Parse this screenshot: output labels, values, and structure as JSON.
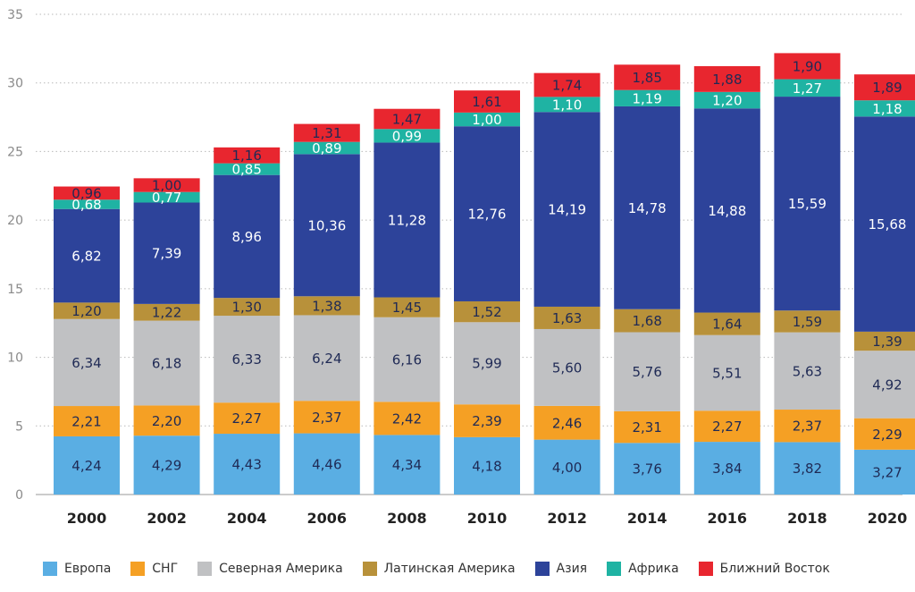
{
  "chart_data": {
    "type": "bar",
    "stacked": true,
    "categories": [
      "2000",
      "2002",
      "2004",
      "2006",
      "2008",
      "2010",
      "2012",
      "2014",
      "2016",
      "2018",
      "2020"
    ],
    "ylim": [
      0,
      35
    ],
    "yticks": [
      0,
      5,
      10,
      15,
      20,
      25,
      30,
      35
    ],
    "grid": true,
    "legend_position": "bottom",
    "series": [
      {
        "name": "Европа",
        "color": "#5aaee3",
        "label_color": "#1f2a55",
        "values": [
          4.24,
          4.29,
          4.43,
          4.46,
          4.34,
          4.18,
          4.0,
          3.76,
          3.84,
          3.82,
          3.27
        ],
        "labels": [
          "4,24",
          "4,29",
          "4,43",
          "4,46",
          "4,34",
          "4,18",
          "4,00",
          "3,76",
          "3,84",
          "3,82",
          "3,27"
        ]
      },
      {
        "name": "СНГ",
        "color": "#f5a024",
        "label_color": "#1f2a55",
        "values": [
          2.21,
          2.2,
          2.27,
          2.37,
          2.42,
          2.39,
          2.46,
          2.31,
          2.27,
          2.37,
          2.29
        ],
        "labels": [
          "2,21",
          "2,20",
          "2,27",
          "2,37",
          "2,42",
          "2,39",
          "2,46",
          "2,31",
          "2,27",
          "2,37",
          "2,29"
        ]
      },
      {
        "name": "Северная Америка",
        "color": "#c0c1c3",
        "label_color": "#1f2a55",
        "values": [
          6.34,
          6.18,
          6.33,
          6.24,
          6.16,
          5.99,
          5.6,
          5.76,
          5.51,
          5.63,
          4.92
        ],
        "labels": [
          "6,34",
          "6,18",
          "6,33",
          "6,24",
          "6,16",
          "5,99",
          "5,60",
          "5,76",
          "5,51",
          "5,63",
          "4,92"
        ]
      },
      {
        "name": "Латинская Америка",
        "color": "#b8913a",
        "label_color": "#1f2a55",
        "values": [
          1.2,
          1.22,
          1.3,
          1.38,
          1.45,
          1.52,
          1.63,
          1.68,
          1.64,
          1.59,
          1.39
        ],
        "labels": [
          "1,20",
          "1,22",
          "1,30",
          "1,38",
          "1,45",
          "1,52",
          "1,63",
          "1,68",
          "1,64",
          "1,59",
          "1,39"
        ]
      },
      {
        "name": "Азия",
        "color": "#2d439a",
        "label_color": "#ffffff",
        "values": [
          6.82,
          7.39,
          8.96,
          10.36,
          11.28,
          12.76,
          14.19,
          14.78,
          14.88,
          15.59,
          15.68
        ],
        "labels": [
          "6,82",
          "7,39",
          "8,96",
          "10,36",
          "11,28",
          "12,76",
          "14,19",
          "14,78",
          "14,88",
          "15,59",
          "15,68"
        ]
      },
      {
        "name": "Африка",
        "color": "#1fb3a3",
        "label_color": "#ffffff",
        "values": [
          0.68,
          0.77,
          0.85,
          0.89,
          0.99,
          1.0,
          1.1,
          1.19,
          1.2,
          1.27,
          1.18
        ],
        "labels": [
          "0,68",
          "0,77",
          "0,85",
          "0,89",
          "0,99",
          "1,00",
          "1,10",
          "1,19",
          "1,20",
          "1,27",
          "1,18"
        ]
      },
      {
        "name": "Ближний Восток",
        "color": "#e8262f",
        "label_color": "#1f2a55",
        "values": [
          0.96,
          1.0,
          1.16,
          1.31,
          1.47,
          1.61,
          1.74,
          1.85,
          1.88,
          1.9,
          1.89
        ],
        "labels": [
          "0,96",
          "1,00",
          "1,16",
          "1,31",
          "1,47",
          "1,61",
          "1,74",
          "1,85",
          "1,88",
          "1,90",
          "1,89"
        ]
      }
    ]
  }
}
